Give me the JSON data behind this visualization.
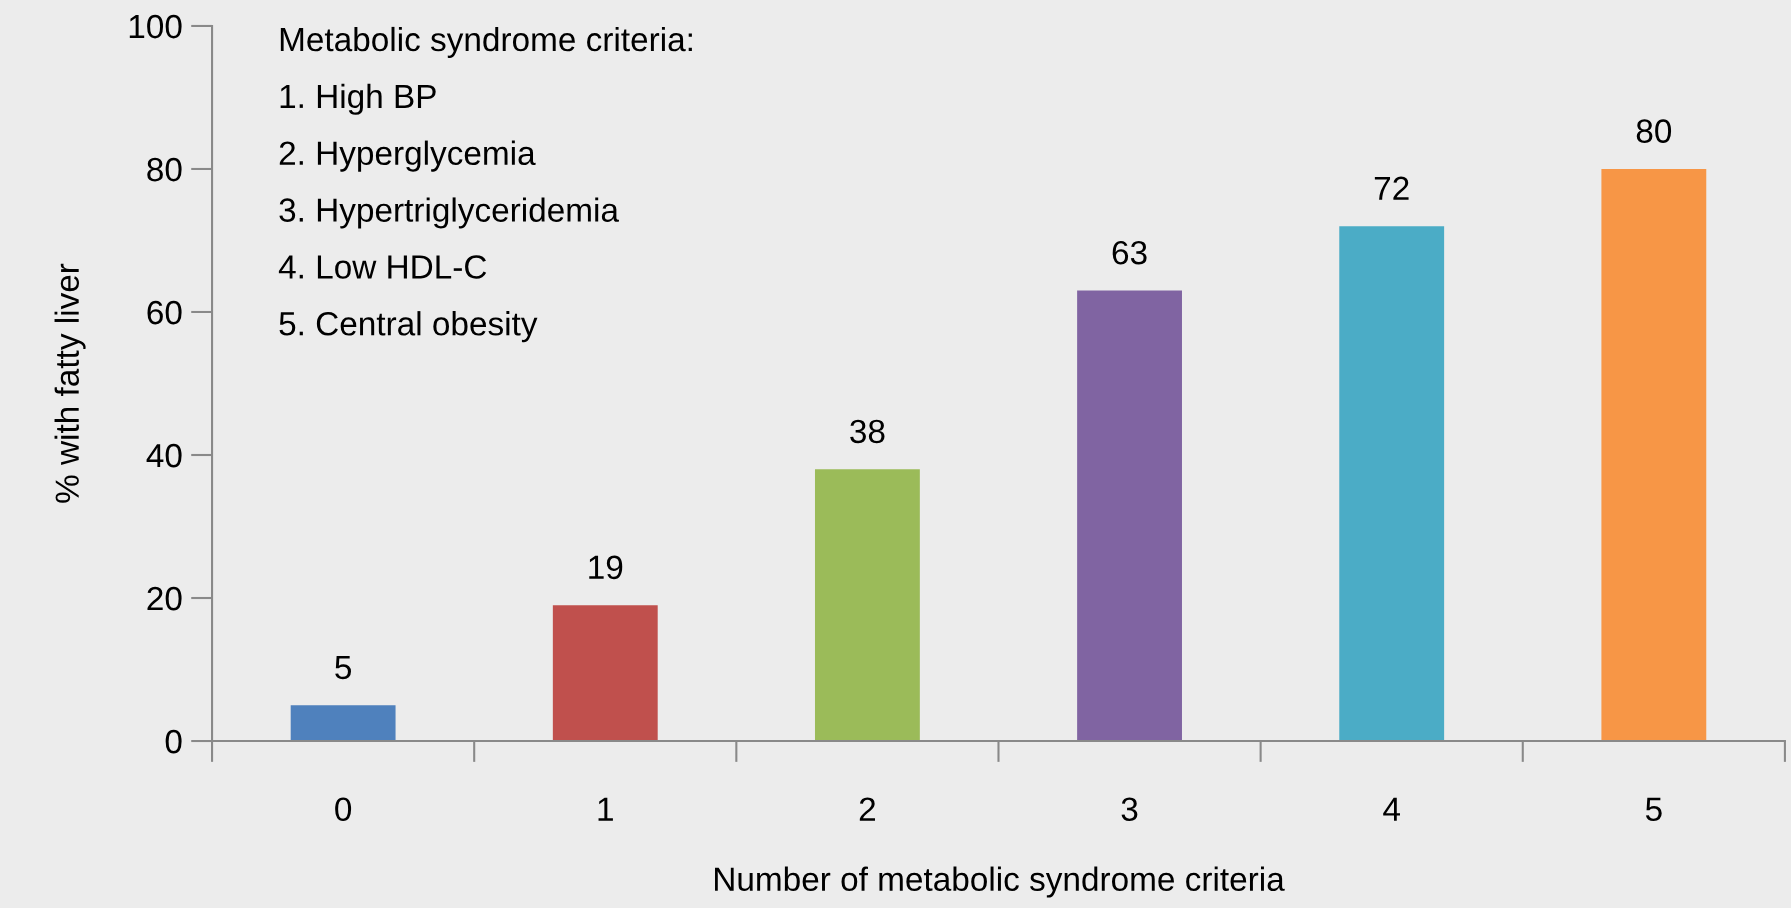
{
  "chart_data": {
    "type": "bar",
    "xlabel": "Number of metabolic syndrome criteria",
    "ylabel": "% with fatty liver",
    "categories": [
      "0",
      "1",
      "2",
      "3",
      "4",
      "5"
    ],
    "values": [
      5,
      19,
      38,
      63,
      72,
      80
    ],
    "colors": [
      "#4f81bd",
      "#c0504d",
      "#9bbb59",
      "#8064a2",
      "#4bacc6",
      "#f79646"
    ],
    "ylim": [
      0,
      100
    ],
    "yticks": [
      0,
      20,
      40,
      60,
      80,
      100
    ],
    "grid": false,
    "legend": false,
    "data_labels": true,
    "annotations": [
      "Metabolic syndrome criteria:",
      "1. High BP",
      "2. Hyperglycemia",
      "3. Hypertriglyceridemia",
      "4. Low HDL-C",
      "5. Central obesity"
    ]
  }
}
